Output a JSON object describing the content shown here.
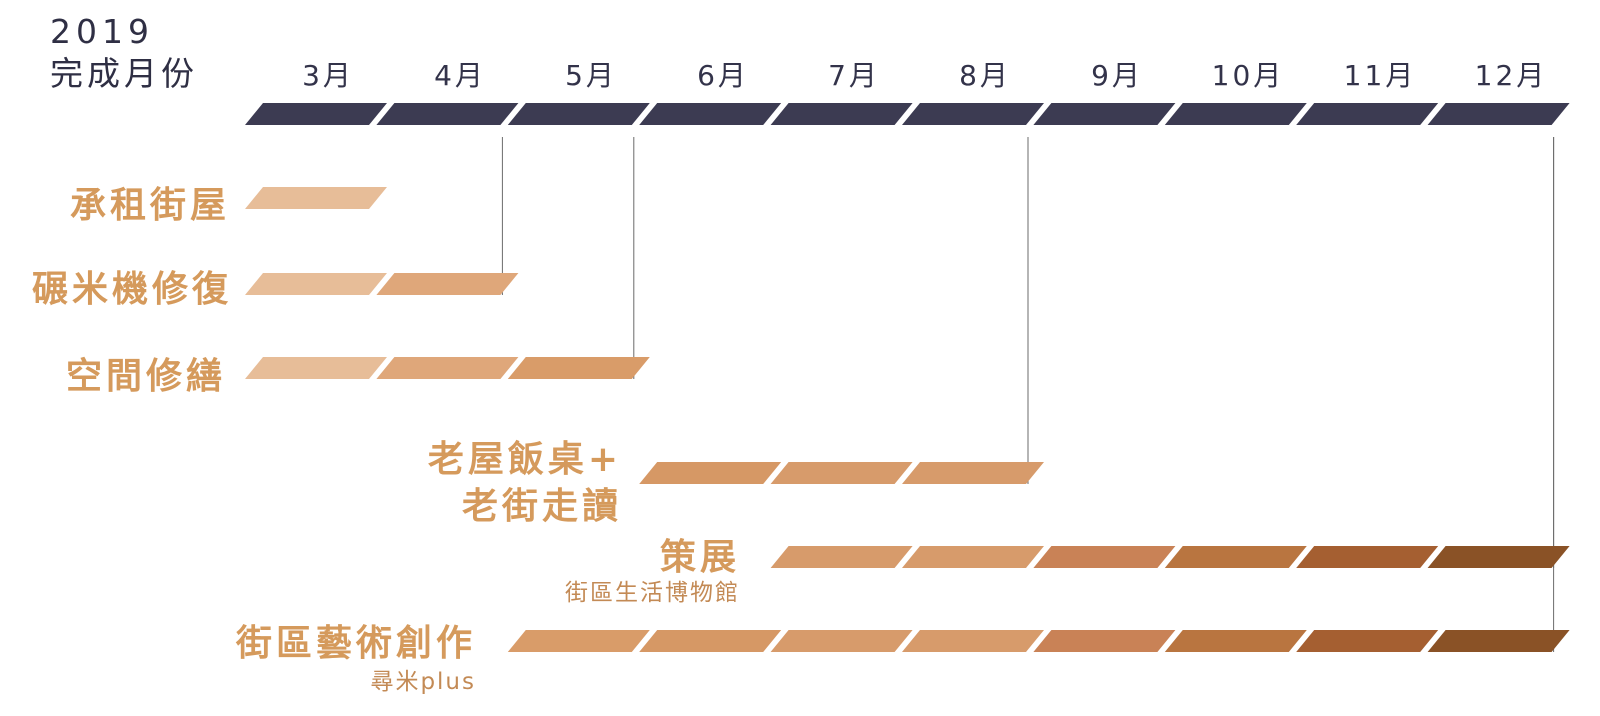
{
  "header": {
    "year": "2019",
    "subtitle": "完成月份"
  },
  "months": [
    "3月",
    "4月",
    "5月",
    "6月",
    "7月",
    "8月",
    "9月",
    "10月",
    "11月",
    "12月"
  ],
  "colors": {
    "timeline": "#3c3b52",
    "guide_line": "#6b6b6b",
    "label": "#d59a5c",
    "segments": [
      "#e7bd98",
      "#dfa77a",
      "#d99c69",
      "#d69865",
      "#d79b6b",
      "#d79b6b",
      "#c98256",
      "#b97540",
      "#a55f31",
      "#8a5226"
    ]
  },
  "tasks": [
    {
      "label": "承租街屋",
      "start": 0,
      "end": 0,
      "milestone": null
    },
    {
      "label": "碾米機修復",
      "start": 0,
      "end": 1,
      "milestone": 1
    },
    {
      "label": "空間修繕",
      "start": 0,
      "end": 2,
      "milestone": 2
    },
    {
      "label_line1": "老屋飯桌+",
      "label_line2": "老街走讀",
      "start": 3,
      "end": 5,
      "milestone": 5
    },
    {
      "label": "策展",
      "sublabel": "街區生活博物館",
      "start": 4,
      "end": 9,
      "milestone": 9
    },
    {
      "label": "街區藝術創作",
      "sublabel": "尋米plus",
      "start": 2,
      "end": 9,
      "milestone": 9
    }
  ]
}
